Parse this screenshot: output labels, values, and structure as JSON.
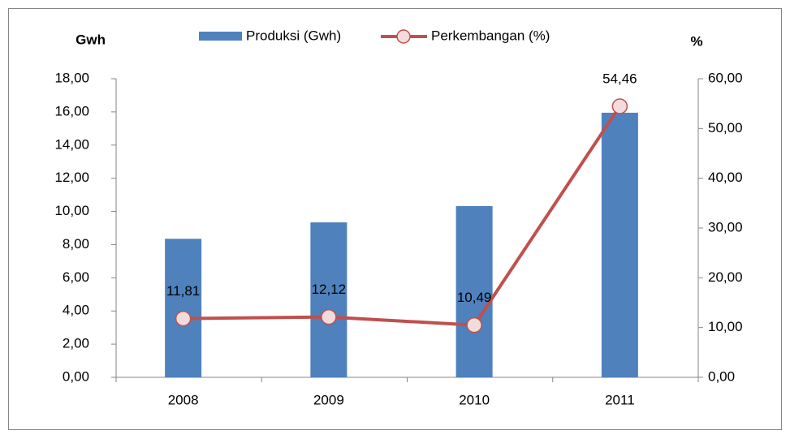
{
  "chart_data": {
    "type": "combo",
    "y_label": "Gwh",
    "y2_label": "%",
    "categories": [
      "2008",
      "2009",
      "2010",
      "2011"
    ],
    "series": [
      {
        "name": "Produksi (Gwh)",
        "color": "#4f81bd",
        "values": [
          8.35,
          9.34,
          10.32,
          15.95
        ]
      },
      {
        "name": "Perkembangan (%)",
        "color": "#c0504d",
        "axis": "y2",
        "values": [
          11.81,
          12.12,
          10.49,
          54.46
        ],
        "value_labels": [
          "11,81",
          "12,12",
          "10,49",
          "54,46"
        ]
      }
    ],
    "ylim": [
      0,
      18
    ],
    "yticks": [
      {
        "value": 0,
        "label": "0,00"
      },
      {
        "value": 2,
        "label": "2,00"
      },
      {
        "value": 4,
        "label": "4,00"
      },
      {
        "value": 6,
        "label": "6,00"
      },
      {
        "value": 8,
        "label": "8,00"
      },
      {
        "value": 10,
        "label": "10,00"
      },
      {
        "value": 12,
        "label": "12,00"
      },
      {
        "value": 14,
        "label": "14,00"
      },
      {
        "value": 16,
        "label": "16,00"
      },
      {
        "value": 18,
        "label": "18,00"
      }
    ],
    "y2lim": [
      0,
      60
    ],
    "y2ticks": [
      {
        "value": 0,
        "label": "0,00"
      },
      {
        "value": 10,
        "label": "10,00"
      },
      {
        "value": 20,
        "label": "20,00"
      },
      {
        "value": 30,
        "label": "30,00"
      },
      {
        "value": 40,
        "label": "40,00"
      },
      {
        "value": 50,
        "label": "50,00"
      },
      {
        "value": 60,
        "label": "60,00"
      }
    ],
    "grid": false
  }
}
